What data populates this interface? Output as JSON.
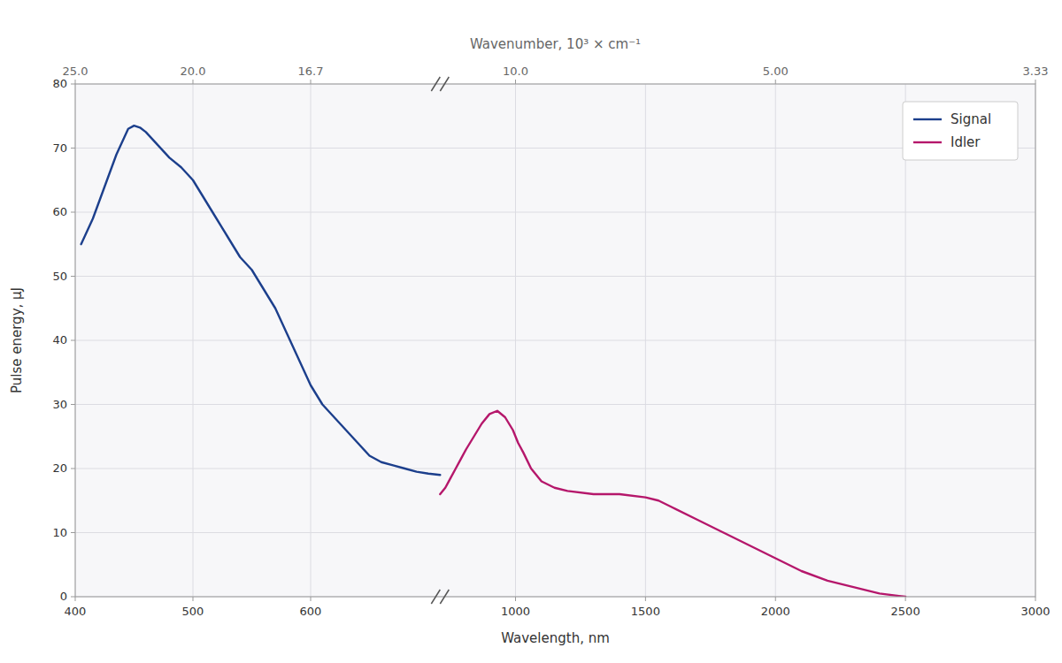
{
  "chart_data": {
    "type": "line",
    "xlabel": "Wavelength, nm",
    "ylabel": "Pulse energy, μJ",
    "x2label": "Wavenumber, 10³ × cm⁻¹",
    "xlim": [
      400,
      3000
    ],
    "x_break": 710,
    "xticks": [
      400,
      500,
      600,
      1000,
      1500,
      2000,
      2500,
      3000
    ],
    "x2ticks": [
      {
        "value": 400,
        "label": "25.0"
      },
      {
        "value": 500,
        "label": "20.0"
      },
      {
        "value": 600,
        "label": "16.7"
      },
      {
        "value": 1000,
        "label": "10.0"
      },
      {
        "value": 2000,
        "label": "5.00"
      },
      {
        "value": 3000,
        "label": "3.33"
      }
    ],
    "ylim": [
      0,
      80
    ],
    "yticks": [
      0,
      10,
      20,
      30,
      40,
      50,
      60,
      70,
      80
    ],
    "grid": true,
    "legend": "upper right",
    "series": [
      {
        "name": "Signal",
        "color": "#1c3f8c",
        "x": [
          405,
          415,
          425,
          435,
          445,
          450,
          455,
          460,
          465,
          470,
          475,
          480,
          490,
          500,
          510,
          520,
          530,
          540,
          550,
          560,
          570,
          580,
          590,
          600,
          610,
          620,
          630,
          640,
          650,
          660,
          670,
          680,
          690,
          700,
          710
        ],
        "values": [
          55,
          59,
          64,
          69,
          73,
          73.5,
          73.2,
          72.5,
          71.5,
          70.5,
          69.5,
          68.5,
          67,
          65,
          62,
          59,
          56,
          53,
          51,
          48,
          45,
          41,
          37,
          33,
          30,
          28,
          26,
          24,
          22,
          21,
          20.5,
          20,
          19.5,
          19.2,
          19
        ]
      },
      {
        "name": "Idler",
        "color": "#b5176b",
        "x": [
          710,
          730,
          750,
          770,
          790,
          810,
          840,
          870,
          900,
          930,
          960,
          990,
          1010,
          1030,
          1060,
          1100,
          1150,
          1200,
          1300,
          1400,
          1500,
          1550,
          1600,
          1700,
          1800,
          1900,
          2000,
          2100,
          2200,
          2300,
          2400,
          2500
        ],
        "values": [
          16,
          17,
          18.5,
          20,
          21.5,
          23,
          25,
          27,
          28.5,
          29,
          28,
          26,
          24,
          22.5,
          20,
          18,
          17,
          16.5,
          16,
          16,
          15.5,
          15,
          14,
          12,
          10,
          8,
          6,
          4,
          2.5,
          1.5,
          0.5,
          0
        ]
      }
    ]
  }
}
